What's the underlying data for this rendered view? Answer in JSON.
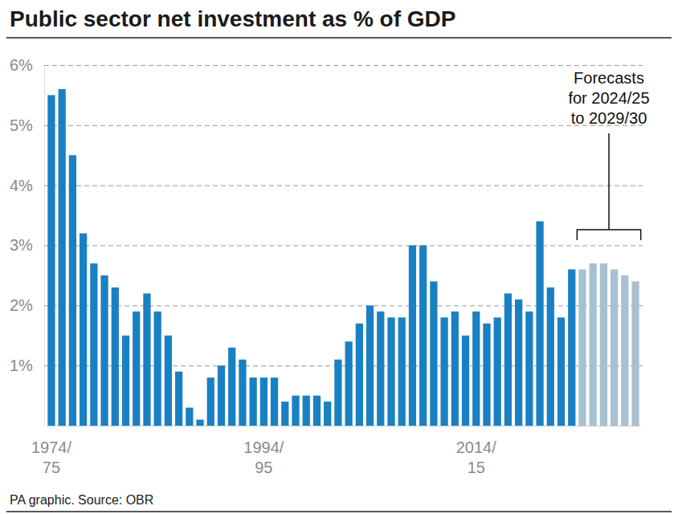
{
  "chart_data": {
    "type": "bar",
    "title": "Public sector net investment as % of GDP",
    "categories": [
      "1974/75",
      null,
      null,
      null,
      null,
      null,
      null,
      null,
      null,
      null,
      null,
      null,
      null,
      null,
      null,
      null,
      null,
      null,
      null,
      null,
      "1994/95",
      null,
      null,
      null,
      null,
      null,
      null,
      null,
      null,
      null,
      null,
      null,
      null,
      null,
      null,
      null,
      null,
      null,
      null,
      null,
      "2014/15",
      null,
      null,
      null,
      null,
      null,
      null,
      null,
      null,
      null,
      null,
      null,
      null,
      null,
      null,
      null
    ],
    "values": [
      5.5,
      5.6,
      4.5,
      3.2,
      2.7,
      2.5,
      2.3,
      1.5,
      1.9,
      2.2,
      1.9,
      1.5,
      0.9,
      0.3,
      0.1,
      0.8,
      1.0,
      1.3,
      1.1,
      0.8,
      0.8,
      0.8,
      0.4,
      0.5,
      0.5,
      0.5,
      0.4,
      1.1,
      1.4,
      1.7,
      2.0,
      1.9,
      1.8,
      1.8,
      3.0,
      3.0,
      2.4,
      1.8,
      1.9,
      1.5,
      1.9,
      1.7,
      1.8,
      2.2,
      2.1,
      1.9,
      3.4,
      2.3,
      1.8,
      2.6,
      2.6,
      2.7,
      2.7,
      2.6,
      2.5,
      2.4
    ],
    "colors": [
      "#1a80c4",
      "#1a80c4",
      "#1a80c4",
      "#1a80c4",
      "#1a80c4",
      "#1a80c4",
      "#1a80c4",
      "#1a80c4",
      "#1a80c4",
      "#1a80c4",
      "#1a80c4",
      "#1a80c4",
      "#1a80c4",
      "#1a80c4",
      "#1a80c4",
      "#1a80c4",
      "#1a80c4",
      "#1a80c4",
      "#1a80c4",
      "#1a80c4",
      "#1a80c4",
      "#1a80c4",
      "#1a80c4",
      "#1a80c4",
      "#1a80c4",
      "#1a80c4",
      "#1a80c4",
      "#1a80c4",
      "#1a80c4",
      "#1a80c4",
      "#1a80c4",
      "#1a80c4",
      "#1a80c4",
      "#1a80c4",
      "#1a80c4",
      "#1a80c4",
      "#1a80c4",
      "#1a80c4",
      "#1a80c4",
      "#1a80c4",
      "#1a80c4",
      "#1a80c4",
      "#1a80c4",
      "#1a80c4",
      "#1a80c4",
      "#1a80c4",
      "#1a80c4",
      "#1a80c4",
      "#1a80c4",
      "#1a80c4",
      "#a7c1d2",
      "#a7c1d2",
      "#a7c1d2",
      "#a7c1d2",
      "#a7c1d2",
      "#a7c1d2"
    ],
    "ylim": [
      0,
      6
    ],
    "yticks": [
      {
        "value": 1,
        "label": "1%"
      },
      {
        "value": 2,
        "label": "2%"
      },
      {
        "value": 3,
        "label": "3%"
      },
      {
        "value": 4,
        "label": "4%"
      },
      {
        "value": 5,
        "label": "5%"
      },
      {
        "value": 6,
        "label": "6%"
      }
    ],
    "grid": true,
    "annotations": [
      "Forecasts\nfor 2024/25\nto 2029/30",
      "PA graphic. Source: OBR"
    ]
  }
}
